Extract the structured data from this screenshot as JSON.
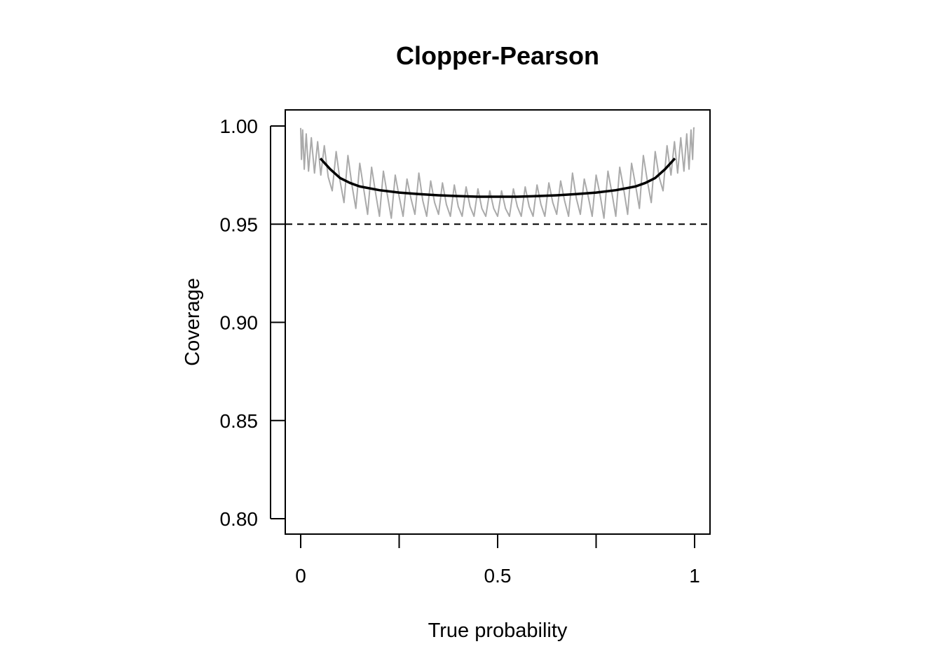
{
  "chart_data": {
    "type": "line",
    "title": "Clopper-Pearson",
    "xlabel": "True probability",
    "ylabel": "Coverage",
    "xlim": [
      0,
      1
    ],
    "ylim": [
      0.8,
      1.0
    ],
    "x_ticks": [
      0,
      0.25,
      0.5,
      0.75,
      1
    ],
    "x_tick_labels": [
      "0",
      "",
      "0.5",
      "",
      "1"
    ],
    "y_ticks": [
      0.8,
      0.85,
      0.9,
      0.95,
      1.0
    ],
    "y_tick_labels": [
      "0.80",
      "0.85",
      "0.90",
      "0.95",
      "1.00"
    ],
    "reference_line": {
      "y": 0.95,
      "style": "dashed",
      "color": "#000000"
    },
    "grid": false,
    "series": [
      {
        "style": "raw",
        "color": "#aaaaaa",
        "x": [
          0.0,
          0.002,
          0.005,
          0.009,
          0.014,
          0.02,
          0.027,
          0.035,
          0.043,
          0.051,
          0.06,
          0.07,
          0.08,
          0.09,
          0.1,
          0.11,
          0.12,
          0.13,
          0.14,
          0.15,
          0.16,
          0.17,
          0.18,
          0.19,
          0.2,
          0.21,
          0.22,
          0.23,
          0.24,
          0.25,
          0.26,
          0.27,
          0.28,
          0.29,
          0.3,
          0.31,
          0.32,
          0.33,
          0.34,
          0.35,
          0.36,
          0.37,
          0.38,
          0.39,
          0.4,
          0.41,
          0.42,
          0.43,
          0.44,
          0.45,
          0.46,
          0.47,
          0.48,
          0.49,
          0.5,
          0.51,
          0.52,
          0.53,
          0.54,
          0.55,
          0.56,
          0.57,
          0.58,
          0.59,
          0.6,
          0.61,
          0.62,
          0.63,
          0.64,
          0.65,
          0.66,
          0.67,
          0.68,
          0.69,
          0.7,
          0.71,
          0.72,
          0.73,
          0.74,
          0.75,
          0.76,
          0.77,
          0.78,
          0.79,
          0.8,
          0.81,
          0.82,
          0.83,
          0.84,
          0.85,
          0.86,
          0.87,
          0.88,
          0.89,
          0.9,
          0.91,
          0.92,
          0.93,
          0.94,
          0.949,
          0.957,
          0.965,
          0.973,
          0.98,
          0.986,
          0.991,
          0.995,
          0.998,
          1.0
        ],
        "y": [
          0.999,
          0.983,
          0.998,
          0.978,
          0.996,
          0.977,
          0.994,
          0.976,
          0.992,
          0.975,
          0.99,
          0.974,
          0.967,
          0.987,
          0.972,
          0.961,
          0.985,
          0.97,
          0.958,
          0.981,
          0.968,
          0.955,
          0.979,
          0.966,
          0.954,
          0.977,
          0.965,
          0.953,
          0.975,
          0.964,
          0.954,
          0.973,
          0.963,
          0.955,
          0.976,
          0.962,
          0.954,
          0.972,
          0.961,
          0.955,
          0.971,
          0.96,
          0.954,
          0.97,
          0.959,
          0.954,
          0.969,
          0.959,
          0.954,
          0.968,
          0.958,
          0.954,
          0.967,
          0.958,
          0.954,
          0.967,
          0.958,
          0.954,
          0.968,
          0.959,
          0.954,
          0.969,
          0.959,
          0.954,
          0.97,
          0.96,
          0.954,
          0.971,
          0.961,
          0.955,
          0.972,
          0.962,
          0.954,
          0.976,
          0.963,
          0.955,
          0.973,
          0.964,
          0.954,
          0.975,
          0.965,
          0.953,
          0.977,
          0.966,
          0.954,
          0.979,
          0.968,
          0.955,
          0.981,
          0.97,
          0.958,
          0.985,
          0.972,
          0.961,
          0.987,
          0.974,
          0.967,
          0.99,
          0.975,
          0.992,
          0.976,
          0.994,
          0.977,
          0.996,
          0.978,
          0.998,
          0.983,
          0.999,
          0.999
        ]
      },
      {
        "style": "smooth",
        "color": "#000000",
        "x": [
          0.05,
          0.075,
          0.1,
          0.125,
          0.15,
          0.2,
          0.25,
          0.3,
          0.35,
          0.4,
          0.45,
          0.5,
          0.55,
          0.6,
          0.65,
          0.7,
          0.75,
          0.8,
          0.85,
          0.875,
          0.9,
          0.925,
          0.95
        ],
        "y": [
          0.9835,
          0.978,
          0.9735,
          0.971,
          0.9692,
          0.9673,
          0.9661,
          0.9653,
          0.9647,
          0.9643,
          0.964,
          0.964,
          0.964,
          0.9643,
          0.9647,
          0.9653,
          0.9661,
          0.9673,
          0.9692,
          0.971,
          0.9735,
          0.978,
          0.9835
        ]
      }
    ]
  }
}
